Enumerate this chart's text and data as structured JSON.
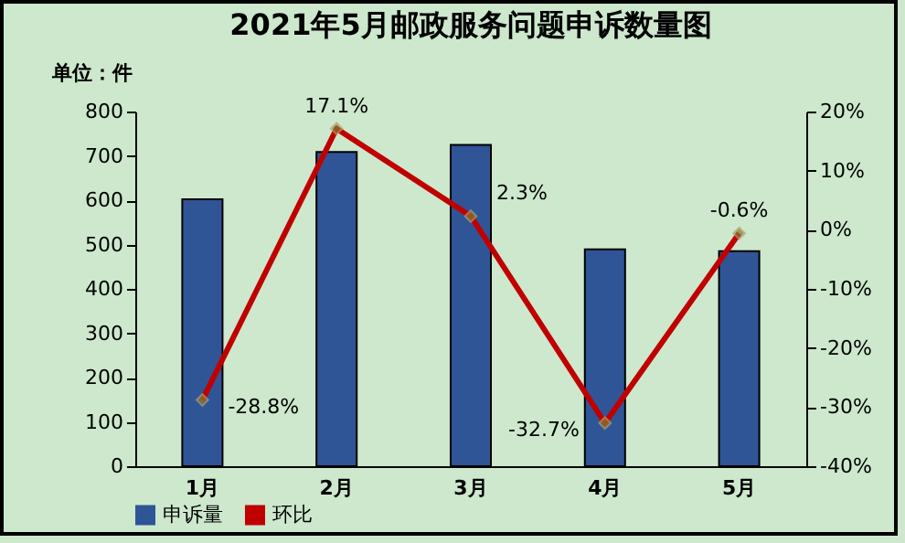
{
  "chart_data": {
    "type": "bar",
    "title": "2021年5月邮政服务问题申诉数量图",
    "ylabel": "单位：件",
    "categories": [
      "1月",
      "2月",
      "3月",
      "4月",
      "5月"
    ],
    "series": [
      {
        "name": "申诉量",
        "color": "#2f5597",
        "values": [
          602,
          709,
          725,
          489,
          485
        ]
      },
      {
        "name": "环比",
        "type": "line",
        "axis": "y2",
        "color": "#c00000",
        "values": [
          -28.8,
          17.1,
          2.3,
          -32.7,
          -0.6
        ],
        "value_labels": [
          "-28.8%",
          "17.1%",
          "2.3%",
          "-32.7%",
          "-0.6%"
        ]
      }
    ],
    "ylim": [
      0,
      800
    ],
    "yticks": [
      0,
      100,
      200,
      300,
      400,
      500,
      600,
      700,
      800
    ],
    "y2lim": [
      -40,
      20
    ],
    "y2ticks": [
      {
        "value": -40,
        "label": "-40%"
      },
      {
        "value": -30,
        "label": "-30%"
      },
      {
        "value": -20,
        "label": "-20%"
      },
      {
        "value": -10,
        "label": "-10%"
      },
      {
        "value": 0,
        "label": "0%"
      },
      {
        "value": 10,
        "label": "10%"
      },
      {
        "value": 20,
        "label": "20%"
      }
    ],
    "legend": "bottom",
    "marker": "diamond"
  }
}
